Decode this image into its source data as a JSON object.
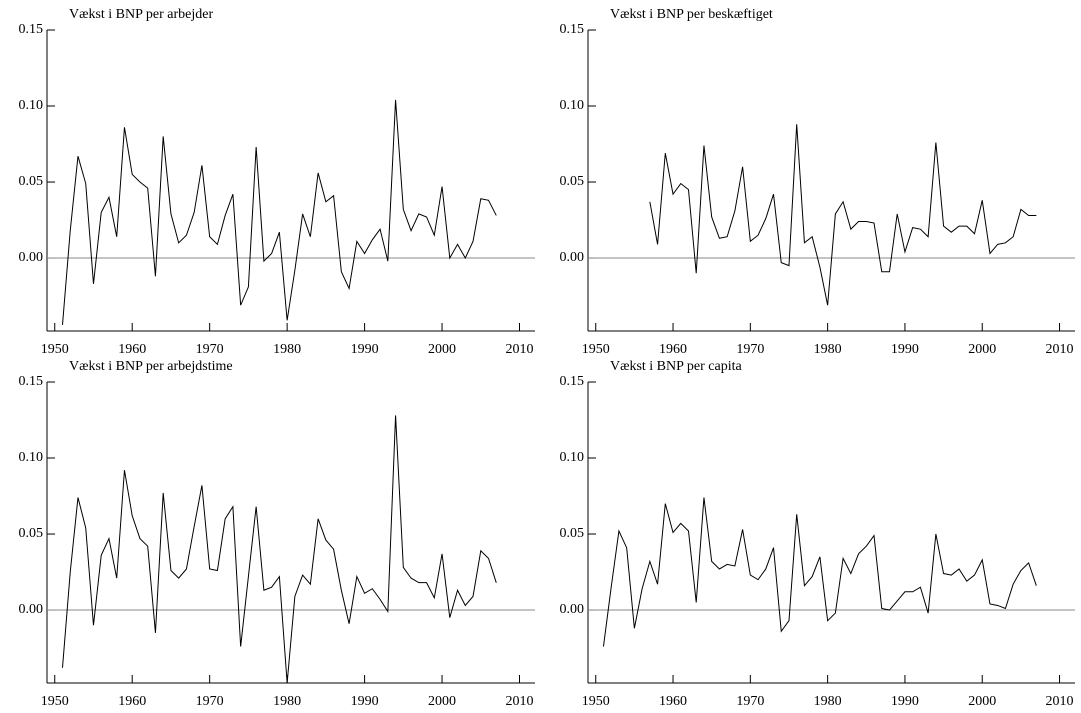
{
  "chart_data": [
    {
      "type": "line",
      "title": "Vækst i BNP per arbejder",
      "x": [
        1951,
        1952,
        1953,
        1954,
        1955,
        1956,
        1957,
        1958,
        1959,
        1960,
        1961,
        1962,
        1963,
        1964,
        1965,
        1966,
        1967,
        1968,
        1969,
        1970,
        1971,
        1972,
        1973,
        1974,
        1975,
        1976,
        1977,
        1978,
        1979,
        1980,
        1981,
        1982,
        1983,
        1984,
        1985,
        1986,
        1987,
        1988,
        1989,
        1990,
        1991,
        1992,
        1993,
        1994,
        1995,
        1996,
        1997,
        1998,
        1999,
        2000,
        2001,
        2002,
        2003,
        2004,
        2005,
        2006,
        2007
      ],
      "values": [
        -0.044,
        0.018,
        0.067,
        0.049,
        -0.017,
        0.03,
        0.04,
        0.014,
        0.086,
        0.055,
        0.05,
        0.046,
        -0.012,
        0.08,
        0.029,
        0.01,
        0.015,
        0.03,
        0.061,
        0.014,
        0.009,
        0.028,
        0.042,
        -0.031,
        -0.019,
        0.073,
        -0.002,
        0.003,
        0.017,
        -0.041,
        -0.008,
        0.029,
        0.014,
        0.056,
        0.037,
        0.041,
        -0.009,
        -0.02,
        0.011,
        0.003,
        0.012,
        0.019,
        -0.002,
        0.104,
        0.032,
        0.018,
        0.029,
        0.027,
        0.015,
        0.047,
        0.0,
        0.009,
        0.0,
        0.011,
        0.039,
        0.038,
        0.028
      ],
      "color": "#000000",
      "xlim": [
        1949,
        2012
      ],
      "xticks": [
        1950,
        1960,
        1970,
        1980,
        1990,
        2000,
        2010
      ],
      "ylim": [
        -0.048,
        0.15
      ],
      "yticks": [
        {
          "value": 0.15,
          "label": "0.15"
        },
        {
          "value": 0.1,
          "label": "0.10"
        },
        {
          "value": 0.05,
          "label": "0.05"
        },
        {
          "value": 0,
          "label": "0.00"
        }
      ]
    },
    {
      "type": "line",
      "title": "Vækst i BNP per beskæftiget",
      "x": [
        1951,
        1952,
        1953,
        1954,
        1955,
        1956,
        1957,
        1958,
        1959,
        1960,
        1961,
        1962,
        1963,
        1964,
        1965,
        1966,
        1967,
        1968,
        1969,
        1970,
        1971,
        1972,
        1973,
        1974,
        1975,
        1976,
        1977,
        1978,
        1979,
        1980,
        1981,
        1982,
        1983,
        1984,
        1985,
        1986,
        1987,
        1988,
        1989,
        1990,
        1991,
        1992,
        1993,
        1994,
        1995,
        1996,
        1997,
        1998,
        1999,
        2000,
        2001,
        2002,
        2003,
        2004,
        2005,
        2006,
        2007
      ],
      "values": [
        null,
        null,
        null,
        null,
        null,
        null,
        0.037,
        0.009,
        0.069,
        0.042,
        0.049,
        0.045,
        -0.01,
        0.074,
        0.027,
        0.013,
        0.014,
        0.031,
        0.06,
        0.011,
        0.015,
        0.026,
        0.042,
        -0.003,
        -0.005,
        0.088,
        0.01,
        0.014,
        -0.006,
        -0.031,
        0.029,
        0.037,
        0.019,
        0.024,
        0.024,
        0.023,
        -0.009,
        -0.009,
        0.029,
        0.004,
        0.02,
        0.019,
        0.014,
        0.076,
        0.021,
        0.017,
        0.021,
        0.021,
        0.016,
        0.038,
        0.003,
        0.009,
        0.01,
        0.014,
        0.032,
        0.028,
        0.028
      ],
      "color": "#000000",
      "xlim": [
        1949,
        2012
      ],
      "xticks": [
        1950,
        1960,
        1970,
        1980,
        1990,
        2000,
        2010
      ],
      "ylim": [
        -0.048,
        0.15
      ],
      "yticks": [
        {
          "value": 0.15,
          "label": "0.15"
        },
        {
          "value": 0.1,
          "label": "0.10"
        },
        {
          "value": 0.05,
          "label": "0.05"
        },
        {
          "value": 0,
          "label": "0.00"
        }
      ]
    },
    {
      "type": "line",
      "title": "Vækst i BNP per arbejdstime",
      "x": [
        1951,
        1952,
        1953,
        1954,
        1955,
        1956,
        1957,
        1958,
        1959,
        1960,
        1961,
        1962,
        1963,
        1964,
        1965,
        1966,
        1967,
        1968,
        1969,
        1970,
        1971,
        1972,
        1973,
        1974,
        1975,
        1976,
        1977,
        1978,
        1979,
        1980,
        1981,
        1982,
        1983,
        1984,
        1985,
        1986,
        1987,
        1988,
        1989,
        1990,
        1991,
        1992,
        1993,
        1994,
        1995,
        1996,
        1997,
        1998,
        1999,
        2000,
        2001,
        2002,
        2003,
        2004,
        2005,
        2006,
        2007
      ],
      "values": [
        -0.038,
        0.025,
        0.074,
        0.054,
        -0.01,
        0.036,
        0.047,
        0.021,
        0.092,
        0.062,
        0.047,
        0.042,
        -0.015,
        0.077,
        0.026,
        0.021,
        0.027,
        0.055,
        0.082,
        0.027,
        0.026,
        0.06,
        0.068,
        -0.024,
        0.022,
        0.068,
        0.013,
        0.015,
        0.022,
        -0.048,
        0.009,
        0.023,
        0.017,
        0.06,
        0.046,
        0.04,
        0.013,
        -0.009,
        0.022,
        0.011,
        0.014,
        0.007,
        -0.001,
        0.128,
        0.028,
        0.021,
        0.018,
        0.018,
        0.008,
        0.037,
        -0.005,
        0.013,
        0.003,
        0.009,
        0.039,
        0.034,
        0.018
      ],
      "color": "#000000",
      "xlim": [
        1949,
        2012
      ],
      "xticks": [
        1950,
        1960,
        1970,
        1980,
        1990,
        2000,
        2010
      ],
      "ylim": [
        -0.048,
        0.15
      ],
      "yticks": [
        {
          "value": 0.15,
          "label": "0.15"
        },
        {
          "value": 0.1,
          "label": "0.10"
        },
        {
          "value": 0.05,
          "label": "0.05"
        },
        {
          "value": 0,
          "label": "0.00"
        }
      ]
    },
    {
      "type": "line",
      "title": "Vækst i BNP per capita",
      "x": [
        1951,
        1952,
        1953,
        1954,
        1955,
        1956,
        1957,
        1958,
        1959,
        1960,
        1961,
        1962,
        1963,
        1964,
        1965,
        1966,
        1967,
        1968,
        1969,
        1970,
        1971,
        1972,
        1973,
        1974,
        1975,
        1976,
        1977,
        1978,
        1979,
        1980,
        1981,
        1982,
        1983,
        1984,
        1985,
        1986,
        1987,
        1988,
        1989,
        1990,
        1991,
        1992,
        1993,
        1994,
        1995,
        1996,
        1997,
        1998,
        1999,
        2000,
        2001,
        2002,
        2003,
        2004,
        2005,
        2006,
        2007
      ],
      "values": [
        -0.024,
        0.015,
        0.052,
        0.041,
        -0.012,
        0.014,
        0.032,
        0.017,
        0.07,
        0.051,
        0.057,
        0.052,
        0.005,
        0.074,
        0.032,
        0.027,
        0.03,
        0.029,
        0.053,
        0.023,
        0.02,
        0.027,
        0.041,
        -0.014,
        -0.007,
        0.063,
        0.016,
        0.022,
        0.035,
        -0.007,
        -0.002,
        0.034,
        0.024,
        0.037,
        0.042,
        0.049,
        0.001,
        0.0,
        0.006,
        0.012,
        0.012,
        0.015,
        -0.002,
        0.05,
        0.024,
        0.023,
        0.027,
        0.019,
        0.023,
        0.033,
        0.004,
        0.003,
        0.001,
        0.017,
        0.026,
        0.031,
        0.016
      ],
      "color": "#000000",
      "xlim": [
        1949,
        2012
      ],
      "xticks": [
        1950,
        1960,
        1970,
        1980,
        1990,
        2000,
        2010
      ],
      "ylim": [
        -0.048,
        0.15
      ],
      "yticks": [
        {
          "value": 0.15,
          "label": "0.15"
        },
        {
          "value": 0.1,
          "label": "0.10"
        },
        {
          "value": 0.05,
          "label": "0.05"
        },
        {
          "value": 0,
          "label": "0.00"
        }
      ]
    }
  ]
}
